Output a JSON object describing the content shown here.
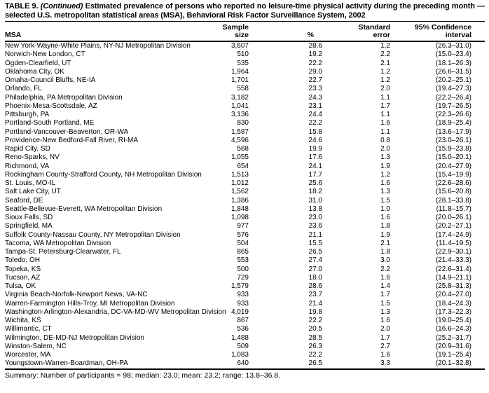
{
  "colors": {
    "text": "#000000",
    "background": "#ffffff"
  },
  "title": {
    "table_label": "TABLE 9.",
    "continued": "(Continued)",
    "rest": "Estimated prevalence of persons who reported no leisure-time physical activity during the preceding month — selected U.S. metropolitan statistical areas (MSA), Behavioral Risk Factor Surveillance System, 2002"
  },
  "table": {
    "headers": {
      "msa": "MSA",
      "sample_line1": "Sample",
      "sample_line2": "size",
      "percent": "%",
      "se_line1": "Standard",
      "se_line2": "error",
      "ci_line1": "95% Confidence",
      "ci_line2": "interval"
    },
    "rows": [
      {
        "msa": "New York-Wayne-White Plains, NY-NJ Metropolitan Division",
        "sample": "3,607",
        "percent": "28.6",
        "se": "1.2",
        "ci": "(26.3–31.0)"
      },
      {
        "msa": "Norwich-New London, CT",
        "sample": "510",
        "percent": "19.2",
        "se": "2.2",
        "ci": "(15.0–23.4)"
      },
      {
        "msa": "Ogden-Clearfield, UT",
        "sample": "535",
        "percent": "22.2",
        "se": "2.1",
        "ci": "(18.1–26.3)"
      },
      {
        "msa": "Oklahoma City, OK",
        "sample": "1,964",
        "percent": "29.0",
        "se": "1.2",
        "ci": "(26.6–31.5)"
      },
      {
        "msa": "Omaha-Council Bluffs, NE-IA",
        "sample": "1,701",
        "percent": "22.7",
        "se": "1.2",
        "ci": "(20.2–25.1)"
      },
      {
        "msa": "Orlando, FL",
        "sample": "558",
        "percent": "23.3",
        "se": "2.0",
        "ci": "(19.4–27.3)"
      },
      {
        "msa": "Philadelphia, PA Metropolitan Division",
        "sample": "3,182",
        "percent": "24.3",
        "se": "1.1",
        "ci": "(22.2–26.4)"
      },
      {
        "msa": "Phoenix-Mesa-Scottsdale, AZ",
        "sample": "1,041",
        "percent": "23.1",
        "se": "1.7",
        "ci": "(19.7–26.5)"
      },
      {
        "msa": "Pittsburgh, PA",
        "sample": "3,136",
        "percent": "24.4",
        "se": "1.1",
        "ci": "(22.3–26.6)"
      },
      {
        "msa": "Portland-South Portland, ME",
        "sample": "830",
        "percent": "22.2",
        "se": "1.6",
        "ci": "(18.9–25.4)"
      },
      {
        "msa": "Portland-Vancouver-Beaverton, OR-WA",
        "sample": "1,587",
        "percent": "15.8",
        "se": "1.1",
        "ci": "(13.6–17.9)"
      },
      {
        "msa": "Providence-New Bedford-Fall River, RI-MA",
        "sample": "4,596",
        "percent": "24.6",
        "se": "0.8",
        "ci": "(23.0–26.1)"
      },
      {
        "msa": "Rapid City, SD",
        "sample": "568",
        "percent": "19.9",
        "se": "2.0",
        "ci": "(15.9–23.8)"
      },
      {
        "msa": "Reno-Sparks, NV",
        "sample": "1,055",
        "percent": "17.6",
        "se": "1.3",
        "ci": "(15.0–20.1)"
      },
      {
        "msa": "Richmond, VA",
        "sample": "654",
        "percent": "24.1",
        "se": "1.9",
        "ci": "(20.4–27.9)"
      },
      {
        "msa": "Rockingham County-Strafford County, NH Metropolitan Division",
        "sample": "1,513",
        "percent": "17.7",
        "se": "1.2",
        "ci": "(15.4–19.9)"
      },
      {
        "msa": "St. Louis, MO-IL",
        "sample": "1,012",
        "percent": "25.6",
        "se": "1.6",
        "ci": "(22.6–28.6)"
      },
      {
        "msa": "Salt Lake City, UT",
        "sample": "1,562",
        "percent": "18.2",
        "se": "1.3",
        "ci": "(15.6–20.8)"
      },
      {
        "msa": "Seaford, DE",
        "sample": "1,386",
        "percent": "31.0",
        "se": "1.5",
        "ci": "(28.1–33.8)"
      },
      {
        "msa": "Seattle-Bellevue-Everett, WA Metropolitan Division",
        "sample": "1,848",
        "percent": "13.8",
        "se": "1.0",
        "ci": "(11.8–15.7)"
      },
      {
        "msa": "Sioux Falls, SD",
        "sample": "1,098",
        "percent": "23.0",
        "se": "1.6",
        "ci": "(20.0–26.1)"
      },
      {
        "msa": "Springfield, MA",
        "sample": "977",
        "percent": "23.6",
        "se": "1.8",
        "ci": "(20.2–27.1)"
      },
      {
        "msa": "Suffolk County-Nassau County, NY Metropolitan Division",
        "sample": "576",
        "percent": "21.1",
        "se": "1.9",
        "ci": "(17.4–24.9)"
      },
      {
        "msa": "Tacoma, WA Metropolitan Division",
        "sample": "504",
        "percent": "15.5",
        "se": "2.1",
        "ci": "(11.4–19.5)"
      },
      {
        "msa": "Tampa-St. Petersburg-Clearwater, FL",
        "sample": "865",
        "percent": "26.5",
        "se": "1.8",
        "ci": "(22.9–30.1)"
      },
      {
        "msa": "Toledo, OH",
        "sample": "553",
        "percent": "27.4",
        "se": "3.0",
        "ci": "(21.4–33.3)"
      },
      {
        "msa": "Topeka, KS",
        "sample": "500",
        "percent": "27.0",
        "se": "2.2",
        "ci": "(22.6–31.4)"
      },
      {
        "msa": "Tucson, AZ",
        "sample": "729",
        "percent": "18.0",
        "se": "1.6",
        "ci": "(14.9–21.1)"
      },
      {
        "msa": "Tulsa, OK",
        "sample": "1,579",
        "percent": "28.6",
        "se": "1.4",
        "ci": "(25.8–31.3)"
      },
      {
        "msa": "Virginia Beach-Norfolk-Newport News, VA-NC",
        "sample": "933",
        "percent": "23.7",
        "se": "1.7",
        "ci": "(20.4–27.0)"
      },
      {
        "msa": "Warren-Farmington Hills-Troy, MI Metropolitan Division",
        "sample": "933",
        "percent": "21.4",
        "se": "1.5",
        "ci": "(18.4–24.3)"
      },
      {
        "msa": "Washington-Arlington-Alexandria, DC-VA-MD-WV Metropolitan Division",
        "sample": "4,019",
        "percent": "19.8",
        "se": "1.3",
        "ci": "(17.3–22.3)"
      },
      {
        "msa": "Wichita, KS",
        "sample": "867",
        "percent": "22.2",
        "se": "1.6",
        "ci": "(19.0–25.4)"
      },
      {
        "msa": "Willimantic, CT",
        "sample": "536",
        "percent": "20.5",
        "se": "2.0",
        "ci": "(16.6–24.3)"
      },
      {
        "msa": "Wilmington, DE-MD-NJ Metropolitan Division",
        "sample": "1,488",
        "percent": "28.5",
        "se": "1.7",
        "ci": "(25.2–31.7)"
      },
      {
        "msa": "Winston-Salem, NC",
        "sample": "509",
        "percent": "26.3",
        "se": "2.7",
        "ci": "(20.9–31.6)"
      },
      {
        "msa": "Worcester, MA",
        "sample": "1,083",
        "percent": "22.2",
        "se": "1.6",
        "ci": "(19.1–25.4)"
      },
      {
        "msa": "Youngstown-Warren-Boardman, OH-PA",
        "sample": "640",
        "percent": "26.5",
        "se": "3.3",
        "ci": "(20.1–32.8)"
      }
    ]
  },
  "summary": "Summary: Number of participants = 98; median: 23.0; mean: 23.2; range: 13.8–36.8."
}
